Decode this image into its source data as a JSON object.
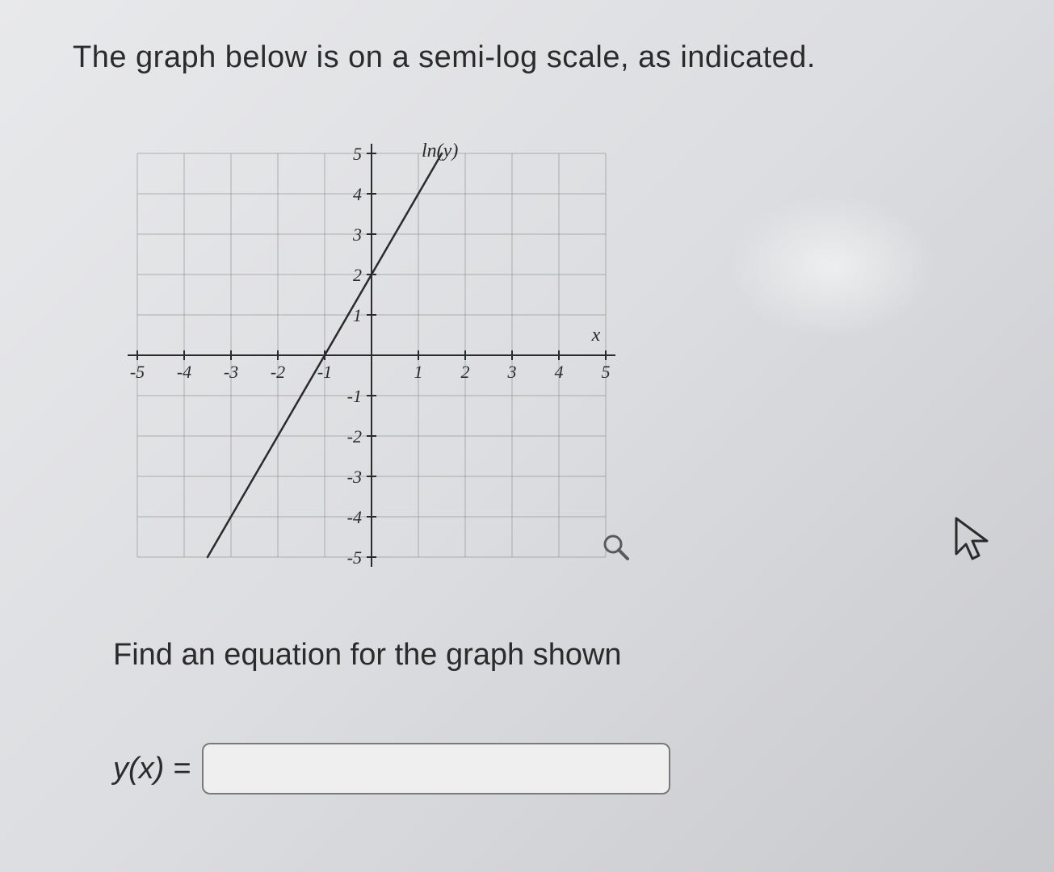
{
  "intro_text": "The graph below is on a semi-log scale, as indicated.",
  "prompt_text": "Find an equation for the graph shown",
  "answer_label": "y(x) =",
  "answer_value": "",
  "answer_placeholder": "",
  "chart": {
    "type": "line",
    "x_axis_label": "x",
    "y_axis_label": "ln(y)",
    "xlim": [
      -5,
      5
    ],
    "ylim": [
      -5,
      5
    ],
    "xtick_step": 1,
    "ytick_step": 1,
    "xtick_labels": [
      "-5",
      "-4",
      "-3",
      "-2",
      "-1",
      "",
      "1",
      "2",
      "3",
      "4",
      "5"
    ],
    "ytick_labels": [
      "-5",
      "-4",
      "-3",
      "-2",
      "-1",
      "",
      "1",
      "2",
      "3",
      "4",
      "5"
    ],
    "grid_color": "#8a8a8a",
    "axis_color": "#2b2b2b",
    "background_color": "transparent",
    "line_color": "#2b2b2b",
    "line_width": 2.5,
    "line_points": [
      {
        "x": -3.5,
        "y": -5
      },
      {
        "x": 1.5,
        "y": 5
      }
    ],
    "tick_font_size": 22,
    "tick_font_style": "italic",
    "label_font_size": 24,
    "label_font_style": "italic"
  },
  "colors": {
    "text": "#2b2b2b",
    "input_border": "#7a7a7a",
    "input_bg": "#efeff0"
  }
}
